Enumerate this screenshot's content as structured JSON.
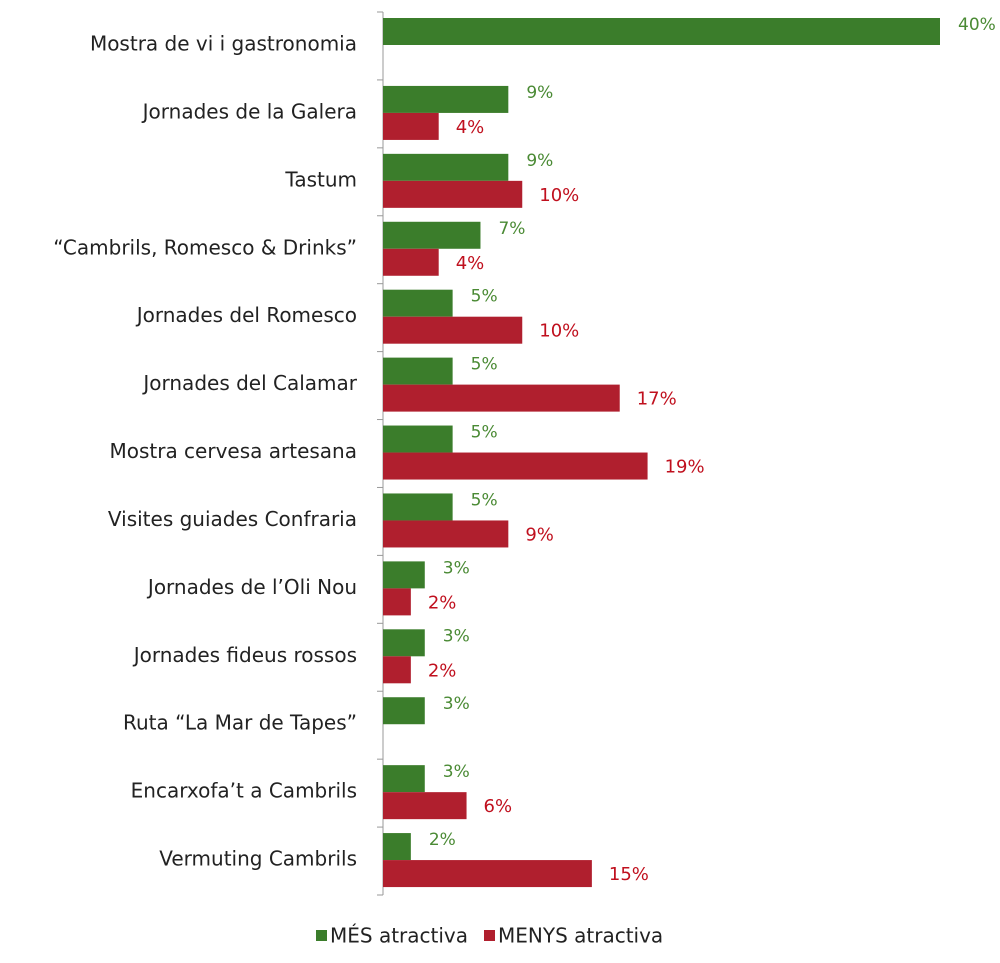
{
  "chart_data": {
    "type": "bar",
    "orientation": "horizontal",
    "categories": [
      "Mostra de vi i gastronomia",
      "Jornades de la Galera",
      "Tastum",
      "“Cambrils, Romesco & Drinks”",
      "Jornades del Romesco",
      "Jornades del Calamar",
      "Mostra cervesa artesana",
      "Visites guiades Confraria",
      "Jornades de l’Oli Nou",
      "Jornades fideus rossos",
      "Ruta “La Mar de Tapes”",
      "Encarxofa’t a Cambrils",
      "Vermuting Cambrils"
    ],
    "series": [
      {
        "name": "MÉS atractiva",
        "color": "#3b7d2b",
        "values": [
          40,
          9,
          9,
          7,
          5,
          5,
          5,
          5,
          3,
          3,
          3,
          3,
          2
        ],
        "value_labels": [
          "40%",
          "9%",
          "9%",
          "7%",
          "5%",
          "5%",
          "5%",
          "5%",
          "3%",
          "3%",
          "3%",
          "3%",
          "2%"
        ]
      },
      {
        "name": "MENYS atractiva",
        "color": "#b01f2e",
        "values": [
          null,
          4,
          10,
          4,
          10,
          17,
          19,
          9,
          2,
          2,
          null,
          6,
          15
        ],
        "value_labels": [
          null,
          "4%",
          "10%",
          "4%",
          "10%",
          "17%",
          "19%",
          "9%",
          "2%",
          "2%",
          null,
          "6%",
          "15%"
        ]
      }
    ],
    "xlim": [
      0,
      40
    ],
    "legend": "bottom"
  }
}
